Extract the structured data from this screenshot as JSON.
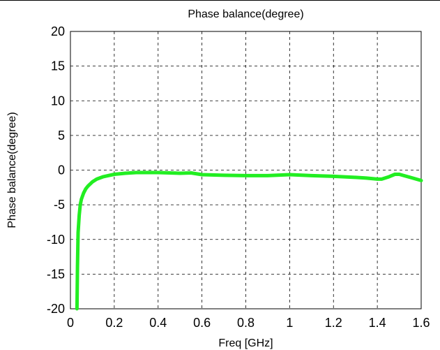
{
  "chart_data": {
    "type": "line",
    "title": "Phase balance(degree)",
    "xlabel": "Freq [GHz]",
    "ylabel": "Phase balance(degree)",
    "xlim": [
      0,
      1.6
    ],
    "ylim": [
      -20,
      20
    ],
    "xticks": [
      "0",
      "0.2",
      "0.4",
      "0.6",
      "0.8",
      "1",
      "1.2",
      "1.4",
      "1.6"
    ],
    "yticks": [
      "-20",
      "-15",
      "-10",
      "-5",
      "0",
      "5",
      "10",
      "15",
      "20"
    ],
    "grid": true,
    "series": [
      {
        "color": "#22ee22",
        "x": [
          0.03,
          0.032,
          0.035,
          0.04,
          0.045,
          0.05,
          0.06,
          0.07,
          0.08,
          0.1,
          0.12,
          0.15,
          0.2,
          0.25,
          0.3,
          0.4,
          0.5,
          0.55,
          0.6,
          0.7,
          0.8,
          0.9,
          1.0,
          1.1,
          1.2,
          1.3,
          1.35,
          1.4,
          1.42,
          1.45,
          1.48,
          1.5,
          1.55,
          1.6
        ],
        "y": [
          -20,
          -14,
          -9,
          -6.5,
          -5,
          -4.2,
          -3.3,
          -2.7,
          -2.3,
          -1.7,
          -1.3,
          -0.95,
          -0.6,
          -0.45,
          -0.35,
          -0.35,
          -0.45,
          -0.4,
          -0.65,
          -0.75,
          -0.8,
          -0.8,
          -0.65,
          -0.8,
          -0.9,
          -1.05,
          -1.15,
          -1.3,
          -1.3,
          -1.0,
          -0.6,
          -0.6,
          -1.05,
          -1.5
        ]
      }
    ]
  }
}
